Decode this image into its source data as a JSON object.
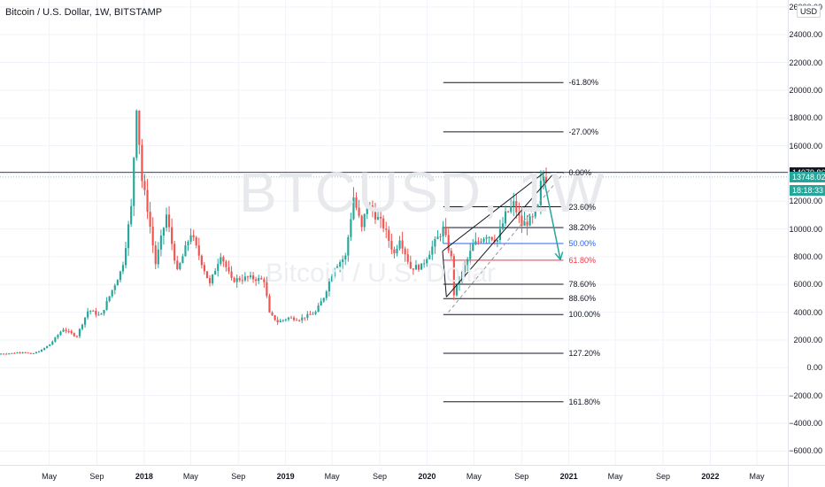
{
  "header": {
    "title": "Bitcoin / U.S. Dollar, 1W, BITSTAMP",
    "currency_button": "USD"
  },
  "watermark": {
    "symbol": "BTCUSD, 1W",
    "name": "Bitcoin / U.S. Dollar"
  },
  "price_tags": [
    {
      "label": "14079.86",
      "value": 14079.86,
      "color": "#131722"
    },
    {
      "label": "13748.02",
      "value": 13748.02,
      "color": "#26a69a"
    },
    {
      "label": "18:18:33",
      "value": 12350,
      "color": "#26a69a"
    }
  ],
  "chart_data": {
    "type": "candlestick",
    "symbol": "Bitcoin / U.S. Dollar",
    "interval": "1W",
    "exchange": "BITSTAMP",
    "ylim": [
      -7000,
      26500
    ],
    "y_ticks": [
      {
        "value": 26000,
        "label": "26000.00"
      },
      {
        "value": 24000,
        "label": "24000.00"
      },
      {
        "value": 22000,
        "label": "22000.00"
      },
      {
        "value": 20000,
        "label": "20000.00"
      },
      {
        "value": 18000,
        "label": "18000.00"
      },
      {
        "value": 16000,
        "label": "16000.00"
      },
      {
        "value": 14000,
        "label": "14000.00"
      },
      {
        "value": 12000,
        "label": "12000.00"
      },
      {
        "value": 10000,
        "label": "10000.00"
      },
      {
        "value": 8000,
        "label": "8000.00"
      },
      {
        "value": 6000,
        "label": "6000.00"
      },
      {
        "value": 4000,
        "label": "4000.00"
      },
      {
        "value": 2000,
        "label": "2000.00"
      },
      {
        "value": 0,
        "label": "0.00"
      },
      {
        "value": -2000,
        "label": "−2000.00"
      },
      {
        "value": -4000,
        "label": "−4000.00"
      },
      {
        "value": -6000,
        "label": "−6000.00"
      }
    ],
    "time_range": [
      "2016-12-25",
      "2022-07-20"
    ],
    "x_ticks": [
      {
        "date": "2017-05-01",
        "label": "May"
      },
      {
        "date": "2017-09-01",
        "label": "Sep"
      },
      {
        "date": "2018-01-01",
        "label": "2018",
        "bold": true
      },
      {
        "date": "2018-05-01",
        "label": "May"
      },
      {
        "date": "2018-09-01",
        "label": "Sep"
      },
      {
        "date": "2019-01-01",
        "label": "2019",
        "bold": true
      },
      {
        "date": "2019-05-01",
        "label": "May"
      },
      {
        "date": "2019-09-01",
        "label": "Sep"
      },
      {
        "date": "2020-01-01",
        "label": "2020",
        "bold": true
      },
      {
        "date": "2020-05-01",
        "label": "May"
      },
      {
        "date": "2020-09-01",
        "label": "Sep"
      },
      {
        "date": "2021-01-01",
        "label": "2021",
        "bold": true
      },
      {
        "date": "2021-05-01",
        "label": "May"
      },
      {
        "date": "2021-09-01",
        "label": "Sep"
      },
      {
        "date": "2022-01-01",
        "label": "2022",
        "bold": true
      },
      {
        "date": "2022-05-01",
        "label": "May"
      }
    ],
    "colors": {
      "up": "#26a69a",
      "down": "#ef5350"
    },
    "price_path": [
      [
        "2016-12-25",
        1000
      ],
      [
        "2017-02-01",
        1050
      ],
      [
        "2017-03-01",
        1150
      ],
      [
        "2017-03-20",
        970
      ],
      [
        "2017-04-15",
        1250
      ],
      [
        "2017-05-10",
        1750
      ],
      [
        "2017-06-10",
        2800
      ],
      [
        "2017-07-15",
        2250
      ],
      [
        "2017-08-15",
        4200
      ],
      [
        "2017-09-15",
        3700
      ],
      [
        "2017-10-15",
        5600
      ],
      [
        "2017-11-10",
        7200
      ],
      [
        "2017-12-03",
        11500
      ],
      [
        "2017-12-17",
        19000
      ],
      [
        "2017-12-31",
        13500
      ],
      [
        "2018-01-14",
        11500
      ],
      [
        "2018-02-04",
        7500
      ],
      [
        "2018-03-04",
        11000
      ],
      [
        "2018-04-01",
        6900
      ],
      [
        "2018-05-06",
        9700
      ],
      [
        "2018-06-24",
        6000
      ],
      [
        "2018-07-22",
        8200
      ],
      [
        "2018-08-19",
        6300
      ],
      [
        "2018-10-01",
        6500
      ],
      [
        "2018-11-11",
        6300
      ],
      [
        "2018-11-25",
        3900
      ],
      [
        "2018-12-16",
        3300
      ],
      [
        "2019-01-13",
        3600
      ],
      [
        "2019-02-10",
        3500
      ],
      [
        "2019-03-24",
        4000
      ],
      [
        "2019-04-14",
        5100
      ],
      [
        "2019-05-12",
        7300
      ],
      [
        "2019-06-09",
        8000
      ],
      [
        "2019-06-30",
        12300
      ],
      [
        "2019-07-21",
        10000
      ],
      [
        "2019-08-04",
        11800
      ],
      [
        "2019-09-15",
        10200
      ],
      [
        "2019-10-13",
        8200
      ],
      [
        "2019-10-27",
        9400
      ],
      [
        "2019-11-24",
        7200
      ],
      [
        "2019-12-22",
        7300
      ],
      [
        "2020-01-19",
        8700
      ],
      [
        "2020-02-16",
        10000
      ],
      [
        "2020-03-08",
        7900
      ],
      [
        "2020-03-15",
        5300
      ],
      [
        "2020-04-05",
        6800
      ],
      [
        "2020-05-03",
        8800
      ],
      [
        "2020-06-07",
        9600
      ],
      [
        "2020-07-05",
        9200
      ],
      [
        "2020-07-26",
        11000
      ],
      [
        "2020-08-16",
        11800
      ],
      [
        "2020-09-06",
        10300
      ],
      [
        "2020-10-04",
        10700
      ],
      [
        "2020-10-18",
        11500
      ],
      [
        "2020-10-25",
        13200
      ],
      [
        "2020-11-01",
        13748
      ]
    ],
    "fib_levels": [
      {
        "label": "-61.80%",
        "value": 20550
      },
      {
        "label": "-27.00%",
        "value": 17000
      },
      {
        "label": "0.00%",
        "value": 14080
      },
      {
        "label": "23.60%",
        "value": 11600
      },
      {
        "label": "38.20%",
        "value": 10100
      },
      {
        "label": "50.00%",
        "value": 8950,
        "color": "#2962ff"
      },
      {
        "label": "61.80%",
        "value": 7750,
        "color": "#f23645"
      },
      {
        "label": "78.60%",
        "value": 6020
      },
      {
        "label": "88.60%",
        "value": 4980
      },
      {
        "label": "100.00%",
        "value": 3830
      },
      {
        "label": "127.20%",
        "value": 1040
      },
      {
        "label": "161.80%",
        "value": -2450
      }
    ],
    "fib_range": [
      "2020-02-12",
      "2020-12-18"
    ],
    "channel": {
      "upper": [
        [
          "2020-02-10",
          8400
        ],
        [
          "2020-10-30",
          14079
        ]
      ],
      "lower": [
        [
          "2020-02-20",
          5100
        ],
        [
          "2020-11-25",
          14079
        ]
      ],
      "midline": [
        [
          "2020-02-25",
          4000
        ],
        [
          "2020-12-20",
          14079
        ]
      ]
    },
    "projection": [
      [
        "2020-10-25",
        14079
      ],
      [
        "2020-12-10",
        7800
      ]
    ],
    "last_price": 13748.02,
    "high_line": 14079.86
  }
}
